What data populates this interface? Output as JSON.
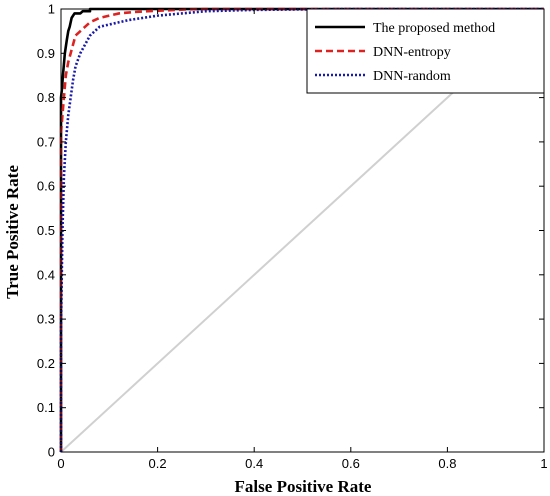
{
  "chart_data": {
    "type": "line",
    "xlabel": "False Positive Rate",
    "ylabel": "True Positive Rate",
    "xlim": [
      0,
      1
    ],
    "ylim": [
      0,
      1
    ],
    "xticks": [
      "0",
      "0.2",
      "0.4",
      "0.6",
      "0.8",
      "1"
    ],
    "yticks": [
      "0",
      "0.1",
      "0.2",
      "0.3",
      "0.4",
      "0.5",
      "0.6",
      "0.7",
      "0.8",
      "0.9",
      "1"
    ],
    "grid": false,
    "legend_position": "top-right",
    "series": [
      {
        "name": "The proposed method",
        "color": "#000000",
        "style": "solid",
        "x": [
          0,
          0.0,
          0.002,
          0.004,
          0.008,
          0.012,
          0.015,
          0.018,
          0.022,
          0.028,
          0.03,
          0.035,
          0.04,
          0.045,
          0.05,
          0.06,
          0.06,
          0.09,
          0.1,
          0.12,
          0.15,
          0.2,
          0.3,
          0.5,
          0.8,
          1.0
        ],
        "y": [
          0,
          0.8,
          0.82,
          0.85,
          0.9,
          0.93,
          0.95,
          0.96,
          0.98,
          0.99,
          0.99,
          0.99,
          0.99,
          0.995,
          0.995,
          0.995,
          1.0,
          1.0,
          1.0,
          1.0,
          1.0,
          1.0,
          1.0,
          1.0,
          1.0,
          1.0
        ]
      },
      {
        "name": "DNN-entropy",
        "color": "#dd2222",
        "style": "dashed",
        "x": [
          0,
          0.0,
          0.003,
          0.006,
          0.01,
          0.015,
          0.02,
          0.025,
          0.03,
          0.04,
          0.05,
          0.06,
          0.07,
          0.08,
          0.1,
          0.12,
          0.15,
          0.18,
          0.22,
          0.26,
          0.3,
          0.4,
          0.6,
          0.8,
          1.0
        ],
        "y": [
          0,
          0.72,
          0.76,
          0.8,
          0.85,
          0.88,
          0.9,
          0.92,
          0.94,
          0.95,
          0.96,
          0.97,
          0.975,
          0.98,
          0.985,
          0.99,
          0.993,
          0.995,
          0.997,
          0.999,
          1.0,
          1.0,
          1.0,
          1.0,
          1.0
        ]
      },
      {
        "name": "DNN-random",
        "color": "#1a1aaa",
        "style": "dotted",
        "x": [
          0,
          0.0,
          0.003,
          0.006,
          0.01,
          0.015,
          0.02,
          0.025,
          0.03,
          0.04,
          0.05,
          0.06,
          0.07,
          0.08,
          0.1,
          0.12,
          0.14,
          0.17,
          0.2,
          0.25,
          0.3,
          0.4,
          0.5,
          0.6,
          0.8,
          1.0
        ],
        "y": [
          0,
          0.28,
          0.5,
          0.62,
          0.7,
          0.76,
          0.8,
          0.84,
          0.87,
          0.9,
          0.92,
          0.94,
          0.95,
          0.96,
          0.965,
          0.97,
          0.975,
          0.98,
          0.985,
          0.99,
          0.995,
          0.998,
          0.999,
          1.0,
          1.0,
          1.0
        ]
      },
      {
        "name": "",
        "color": "#d0d0d0",
        "style": "solid",
        "legend": false,
        "x": [
          0,
          1
        ],
        "y": [
          0,
          1
        ]
      }
    ]
  }
}
